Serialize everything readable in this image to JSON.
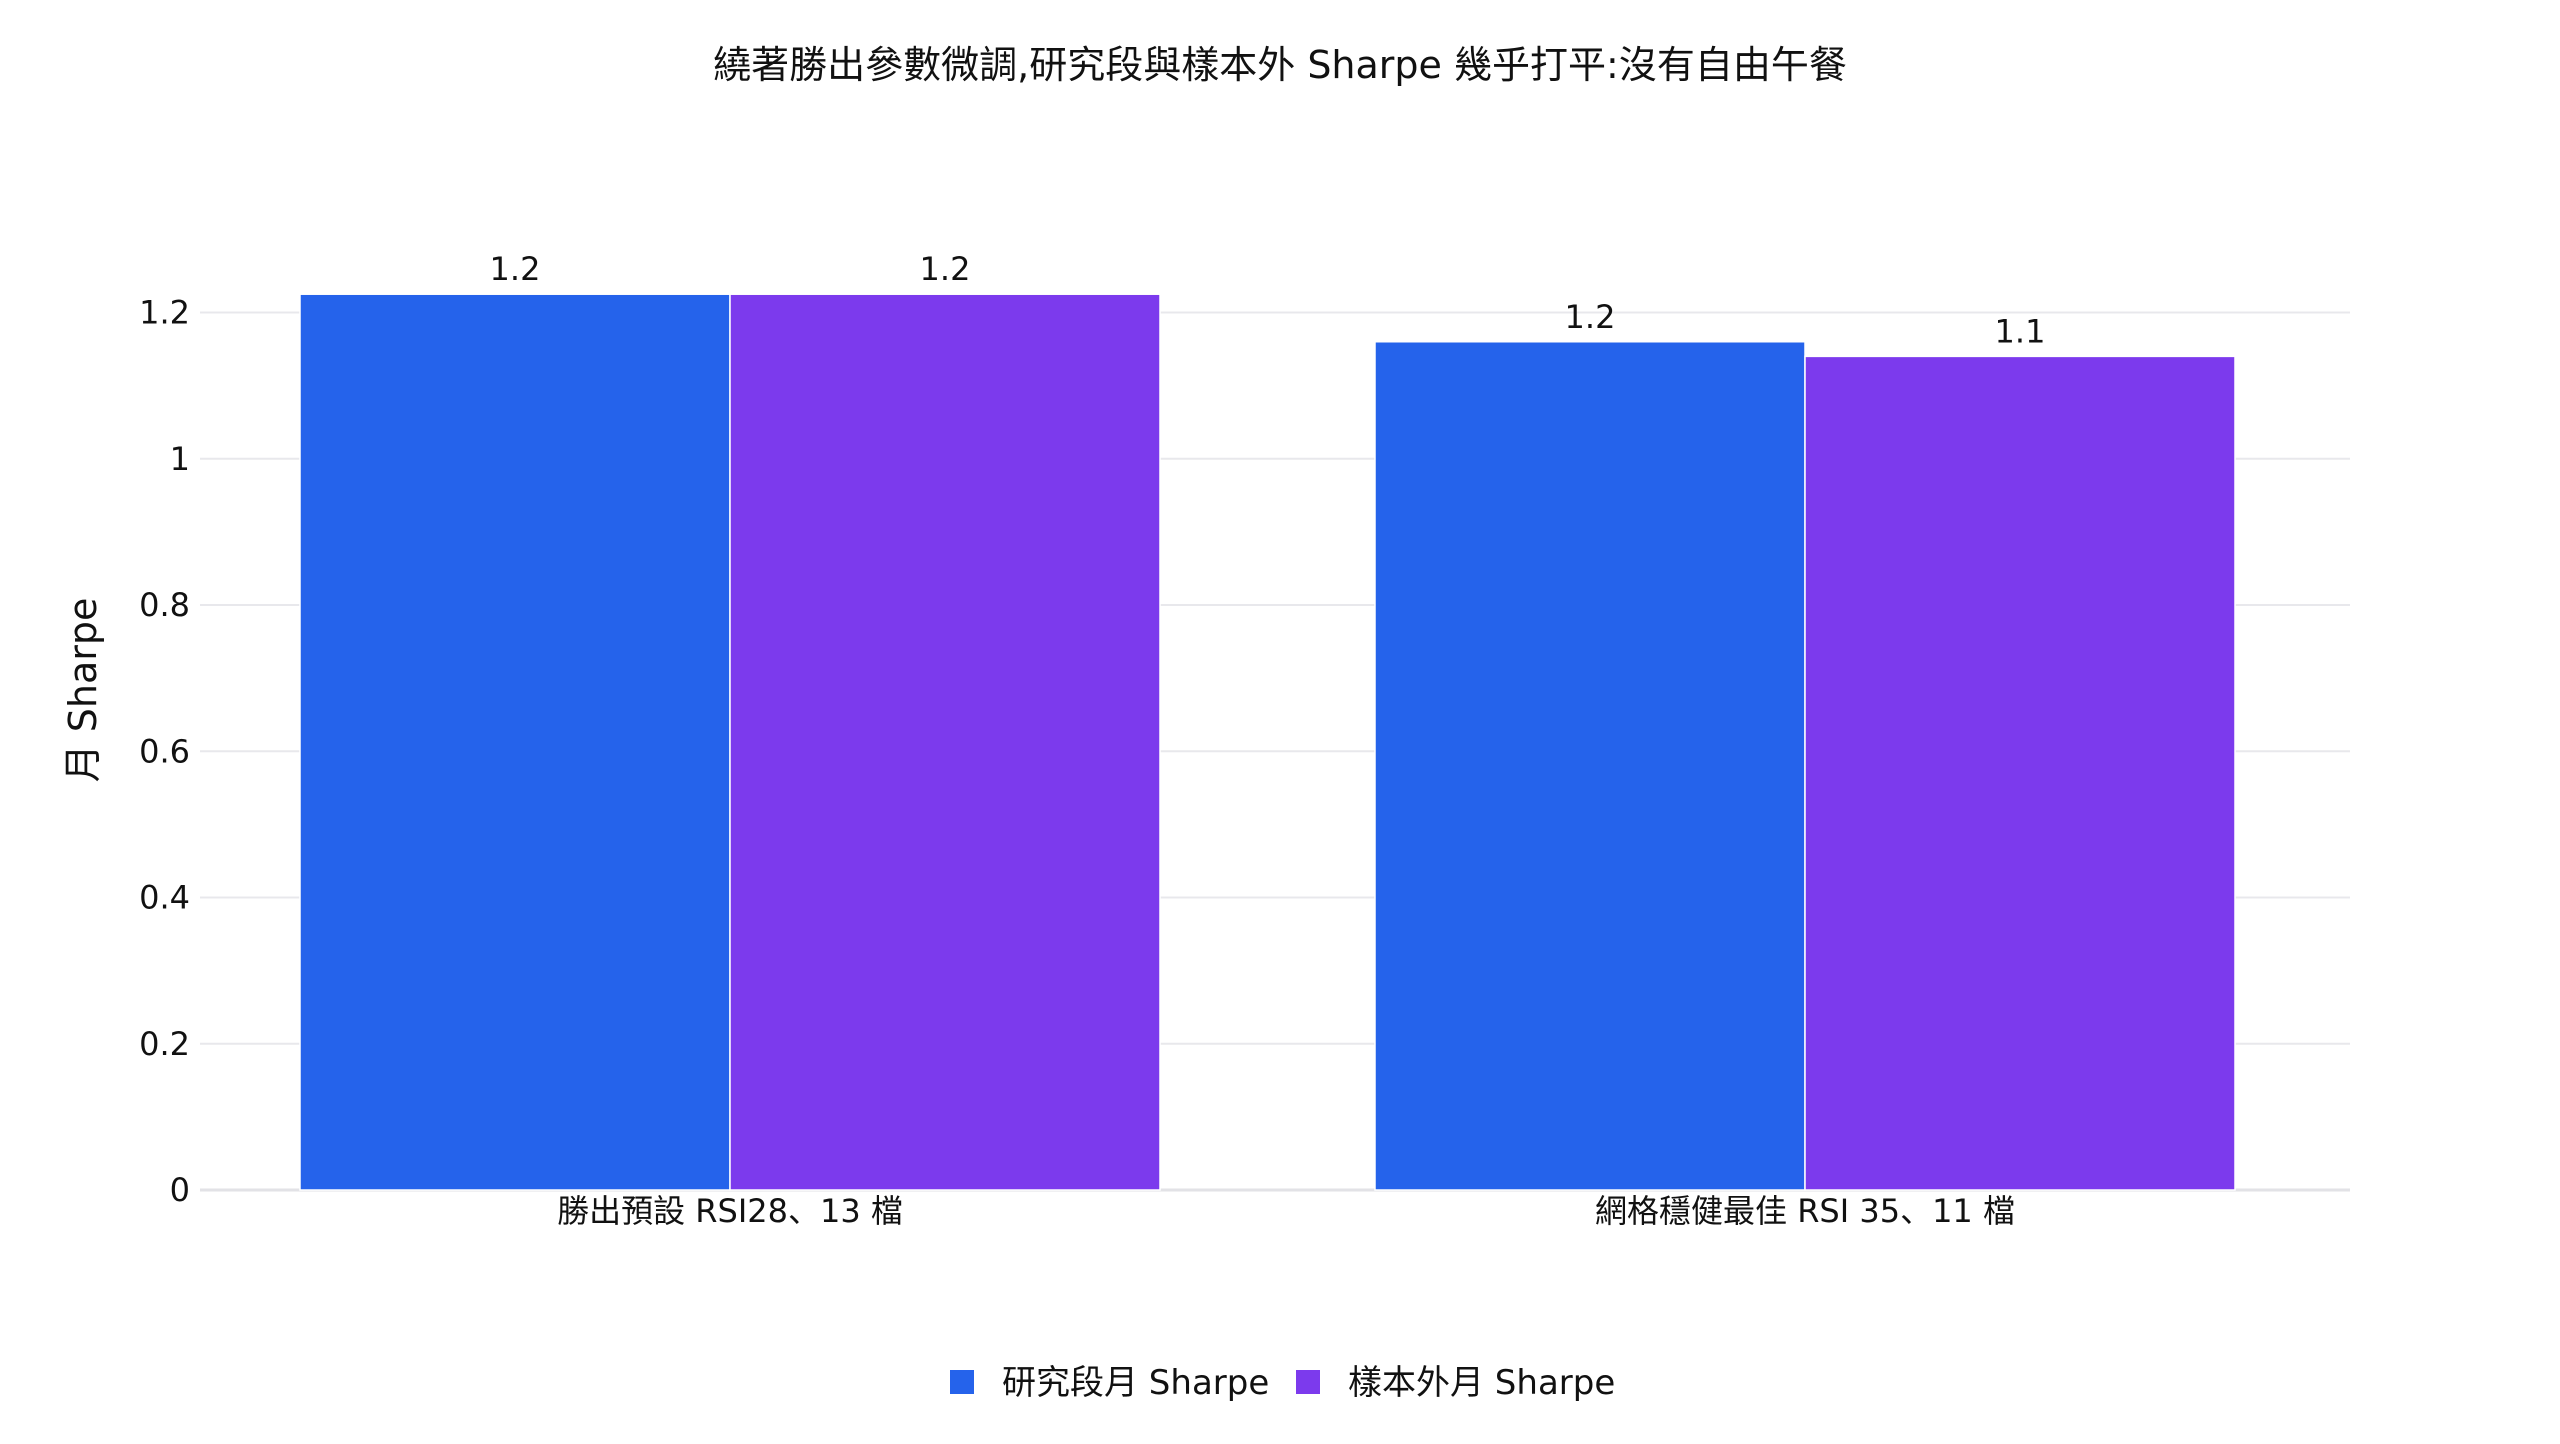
{
  "chart_data": {
    "type": "bar",
    "title": "繞著勝出參數微調,研究段與樣本外 Sharpe 幾乎打平:沒有自由午餐",
    "ylabel": "月 Sharpe",
    "xlabel": "",
    "ylim": [
      0,
      1.3
    ],
    "yticks": [
      0,
      0.2,
      0.4,
      0.6,
      0.8,
      1,
      1.2
    ],
    "ytick_labels": [
      "0",
      "0.2",
      "0.4",
      "0.6",
      "0.8",
      "1",
      "1.2"
    ],
    "grid": true,
    "legend_position": "bottom-center",
    "categories": [
      "勝出預設 RSI28、13 檔",
      "網格穩健最佳 RSI 35、11 檔"
    ],
    "series": [
      {
        "name": "研究段月 Sharpe",
        "color": "#2563eb",
        "values": [
          1.225,
          1.16
        ],
        "labels": [
          "1.2",
          "1.2"
        ]
      },
      {
        "name": "樣本外月 Sharpe",
        "color": "#7c3aed",
        "values": [
          1.225,
          1.14
        ],
        "labels": [
          "1.2",
          "1.1"
        ]
      }
    ]
  }
}
